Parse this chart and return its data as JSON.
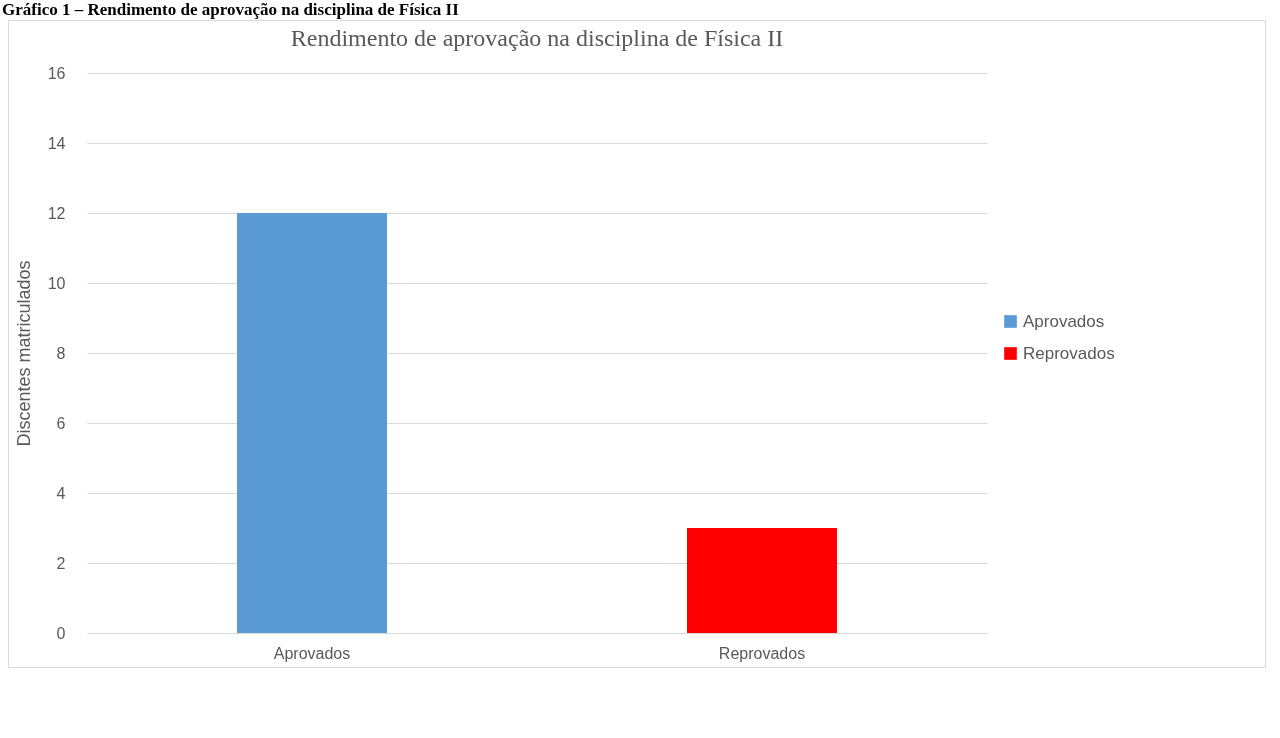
{
  "chart_data": {
    "type": "bar",
    "title": "Rendimento de aprovação na disciplina de Física II",
    "ylabel": "Discentes matriculados",
    "annotations": [
      "Gráfico 1 – Rendimento de aprovação na disciplina de Física II"
    ],
    "categories": [
      "Aprovados",
      "Reprovados"
    ],
    "series": [
      {
        "name": "Aprovados",
        "color": "#5b9bd5",
        "values": [
          12,
          null
        ]
      },
      {
        "name": "Reprovados",
        "color": "#ff0000",
        "values": [
          null,
          3
        ]
      }
    ],
    "ylim": [
      0,
      16
    ],
    "yticks": [
      0,
      2,
      4,
      6,
      8,
      10,
      12,
      14,
      16
    ],
    "grid": "y",
    "legend": "right"
  }
}
